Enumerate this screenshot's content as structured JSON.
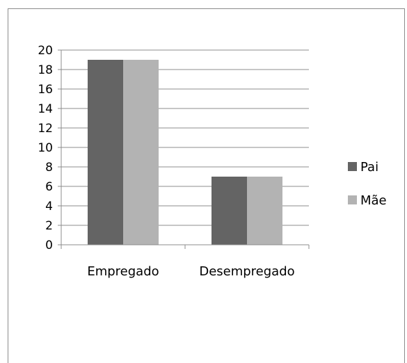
{
  "chart_data": {
    "type": "bar",
    "categories": [
      "Empregado",
      "Desempregado"
    ],
    "series": [
      {
        "name": "Pai",
        "values": [
          19,
          7
        ],
        "color": "#646464"
      },
      {
        "name": "Mãe",
        "values": [
          19,
          7
        ],
        "color": "#b3b3b3"
      }
    ],
    "title": "",
    "xlabel": "",
    "ylabel": "",
    "ylim": [
      0,
      20
    ],
    "yticks": [
      0,
      2,
      4,
      6,
      8,
      10,
      12,
      14,
      16,
      18,
      20
    ],
    "grid": true,
    "legend_position": "right"
  }
}
